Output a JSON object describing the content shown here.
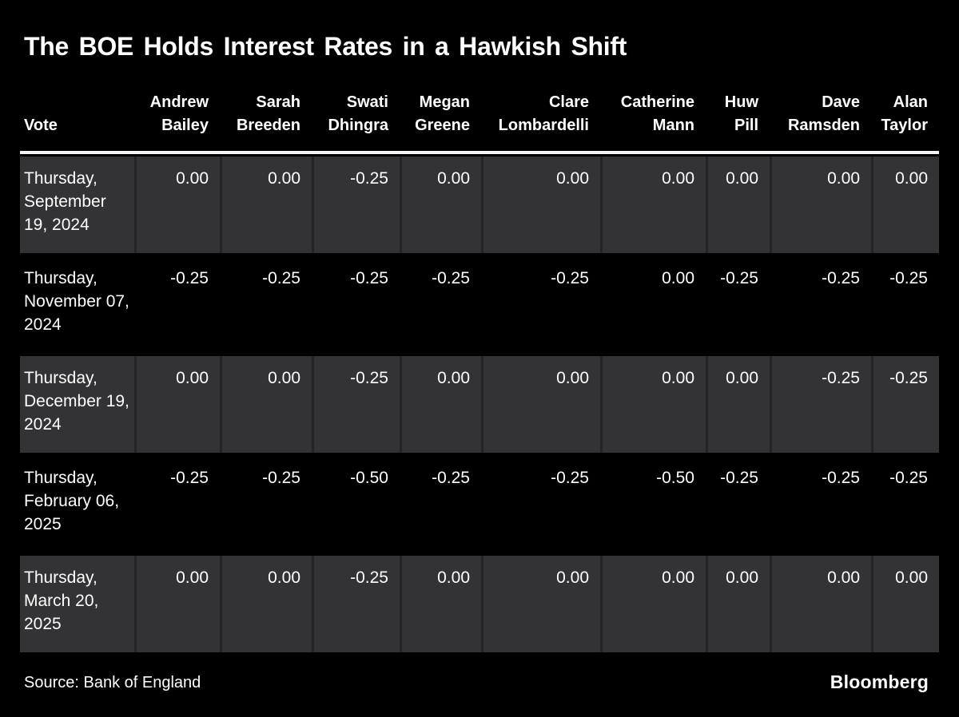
{
  "title": "The BOE Holds Interest Rates in a Hawkish Shift",
  "colors": {
    "background": "#000000",
    "text": "#ffffff",
    "row_stripe": "#333336",
    "cell_separator": "#242428",
    "header_rule": "#f5f5f5"
  },
  "table": {
    "vote_column_label": "Vote",
    "columns": [
      {
        "first": "Andrew",
        "last": "Bailey"
      },
      {
        "first": "Sarah",
        "last": "Breeden"
      },
      {
        "first": "Swati",
        "last": "Dhingra"
      },
      {
        "first": "Megan",
        "last": "Greene"
      },
      {
        "first": "Clare",
        "last": "Lombardelli"
      },
      {
        "first": "Catherine",
        "last": "Mann"
      },
      {
        "first": "Huw",
        "last": "Pill"
      },
      {
        "first": "Dave",
        "last": "Ramsden"
      },
      {
        "first": "Alan",
        "last": "Taylor"
      }
    ],
    "rows": [
      {
        "date": "Thursday, September 19, 2024",
        "values": [
          "0.00",
          "0.00",
          "-0.25",
          "0.00",
          "0.00",
          "0.00",
          "0.00",
          "0.00",
          "0.00"
        ]
      },
      {
        "date": "Thursday, November 07, 2024",
        "values": [
          "-0.25",
          "-0.25",
          "-0.25",
          "-0.25",
          "-0.25",
          "0.00",
          "-0.25",
          "-0.25",
          "-0.25"
        ]
      },
      {
        "date": "Thursday, December 19, 2024",
        "values": [
          "0.00",
          "0.00",
          "-0.25",
          "0.00",
          "0.00",
          "0.00",
          "0.00",
          "-0.25",
          "-0.25"
        ]
      },
      {
        "date": "Thursday, February 06, 2025",
        "values": [
          "-0.25",
          "-0.25",
          "-0.50",
          "-0.25",
          "-0.25",
          "-0.50",
          "-0.25",
          "-0.25",
          "-0.25"
        ]
      },
      {
        "date": "Thursday, March 20, 2025",
        "values": [
          "0.00",
          "0.00",
          "-0.25",
          "0.00",
          "0.00",
          "0.00",
          "0.00",
          "0.00",
          "0.00"
        ]
      }
    ]
  },
  "footer": {
    "source": "Source: Bank of England",
    "brand": "Bloomberg"
  },
  "chart_data": {
    "type": "table",
    "title": "The BOE Holds Interest Rates in a Hawkish Shift",
    "columns": [
      "Vote",
      "Andrew Bailey",
      "Sarah Breeden",
      "Swati Dhingra",
      "Megan Greene",
      "Clare Lombardelli",
      "Catherine Mann",
      "Huw Pill",
      "Dave Ramsden",
      "Alan Taylor"
    ],
    "rows": [
      [
        "Thursday, September 19, 2024",
        0.0,
        0.0,
        -0.25,
        0.0,
        0.0,
        0.0,
        0.0,
        0.0,
        0.0
      ],
      [
        "Thursday, November 07, 2024",
        -0.25,
        -0.25,
        -0.25,
        -0.25,
        -0.25,
        0.0,
        -0.25,
        -0.25,
        -0.25
      ],
      [
        "Thursday, December 19, 2024",
        0.0,
        0.0,
        -0.25,
        0.0,
        0.0,
        0.0,
        0.0,
        -0.25,
        -0.25
      ],
      [
        "Thursday, February 06, 2025",
        -0.25,
        -0.25,
        -0.5,
        -0.25,
        -0.25,
        -0.5,
        -0.25,
        -0.25,
        -0.25
      ],
      [
        "Thursday, March 20, 2025",
        0.0,
        0.0,
        -0.25,
        0.0,
        0.0,
        0.0,
        0.0,
        0.0,
        0.0
      ]
    ],
    "source": "Bank of England",
    "layout_hints": {
      "striped_rows": [
        0,
        2,
        4
      ],
      "value_alignment": "right",
      "header_alignment": "right"
    }
  }
}
